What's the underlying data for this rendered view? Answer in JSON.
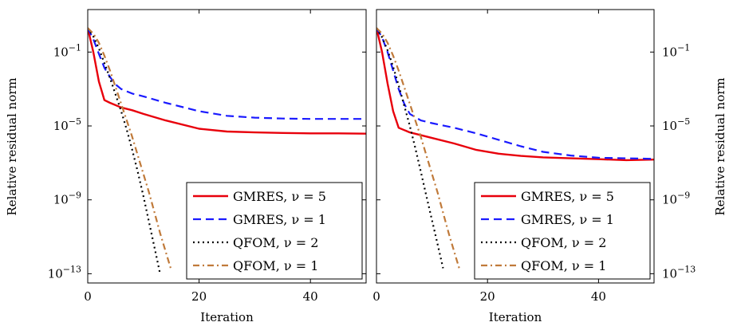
{
  "chart_data": [
    {
      "type": "line",
      "panel": "left",
      "xlabel": "Iteration",
      "ylabel": "Relative residual norm",
      "xlim": [
        0,
        50
      ],
      "ylim_log10": [
        -13.5,
        1.3
      ],
      "yscale": "log",
      "xticks": [
        "0",
        "20",
        "40"
      ],
      "yticks": [
        {
          "exp": -1,
          "label": "10-1"
        },
        {
          "exp": -5,
          "label": "10-5"
        },
        {
          "exp": -9,
          "label": "10-9"
        },
        {
          "exp": -13,
          "label": "10-13"
        }
      ],
      "ytick_side": "left",
      "legend_position": "bottom-right",
      "series": [
        {
          "name": "GMRES, ν = 5",
          "color": "#e8000b",
          "dash": "solid",
          "x": [
            0,
            1,
            2,
            3,
            4,
            6,
            8,
            10,
            14,
            20,
            25,
            30,
            35,
            40,
            45,
            50
          ],
          "log10y": [
            0.3,
            -1.0,
            -2.6,
            -3.6,
            -3.75,
            -4.0,
            -4.15,
            -4.35,
            -4.7,
            -5.15,
            -5.3,
            -5.35,
            -5.38,
            -5.4,
            -5.4,
            -5.42
          ]
        },
        {
          "name": "GMRES, ν = 1",
          "color": "#1a1aff",
          "dash": "dashed",
          "x": [
            0,
            1,
            2,
            3,
            4,
            5,
            6,
            8,
            10,
            14,
            20,
            25,
            30,
            35,
            40,
            45,
            50
          ],
          "log10y": [
            0.3,
            -0.3,
            -1.1,
            -1.85,
            -2.35,
            -2.75,
            -3.0,
            -3.25,
            -3.4,
            -3.75,
            -4.2,
            -4.45,
            -4.55,
            -4.6,
            -4.62,
            -4.62,
            -4.62
          ]
        },
        {
          "name": "QFOM, ν = 2",
          "color": "#000000",
          "dash": "dotted",
          "x": [
            0,
            1,
            2,
            3,
            4,
            5,
            6,
            7,
            8,
            9,
            10,
            11,
            12,
            13
          ],
          "log10y": [
            0.3,
            -0.15,
            -0.8,
            -1.6,
            -2.4,
            -3.3,
            -4.2,
            -5.2,
            -6.3,
            -7.5,
            -8.8,
            -10.2,
            -11.6,
            -13.0
          ]
        },
        {
          "name": "QFOM, ν = 1",
          "color": "#c07a3a",
          "dash": "dashdot",
          "x": [
            0,
            1,
            2,
            3,
            4,
            5,
            6,
            7,
            8,
            9,
            10,
            11,
            12,
            13,
            14,
            15
          ],
          "log10y": [
            0.3,
            0.0,
            -0.5,
            -1.2,
            -2.0,
            -2.9,
            -3.8,
            -4.7,
            -5.6,
            -6.6,
            -7.6,
            -8.6,
            -9.7,
            -10.8,
            -11.8,
            -12.8
          ]
        }
      ]
    },
    {
      "type": "line",
      "panel": "right",
      "xlabel": "Iteration",
      "ylabel": "Relative residual norm",
      "xlim": [
        0,
        50
      ],
      "ylim_log10": [
        -13.5,
        1.3
      ],
      "yscale": "log",
      "xticks": [
        "0",
        "20",
        "40"
      ],
      "yticks": [
        {
          "exp": -1,
          "label": "10-1"
        },
        {
          "exp": -5,
          "label": "10-5"
        },
        {
          "exp": -9,
          "label": "10-9"
        },
        {
          "exp": -13,
          "label": "10-13"
        }
      ],
      "ytick_side": "right",
      "legend_position": "bottom-right",
      "series": [
        {
          "name": "GMRES, ν = 5",
          "color": "#e8000b",
          "dash": "solid",
          "x": [
            0,
            1,
            2,
            3,
            4,
            6,
            8,
            10,
            14,
            18,
            22,
            26,
            30,
            35,
            40,
            45,
            50
          ],
          "log10y": [
            0.3,
            -1.0,
            -2.7,
            -4.2,
            -5.1,
            -5.35,
            -5.5,
            -5.65,
            -5.95,
            -6.3,
            -6.5,
            -6.62,
            -6.7,
            -6.75,
            -6.8,
            -6.85,
            -6.82
          ]
        },
        {
          "name": "GMRES, ν = 1",
          "color": "#1a1aff",
          "dash": "dashed",
          "x": [
            0,
            1,
            2,
            3,
            4,
            5,
            6,
            8,
            10,
            14,
            18,
            22,
            26,
            30,
            35,
            40,
            45,
            50
          ],
          "log10y": [
            0.3,
            -0.2,
            -1.0,
            -2.0,
            -3.0,
            -3.8,
            -4.35,
            -4.7,
            -4.85,
            -5.1,
            -5.4,
            -5.75,
            -6.1,
            -6.4,
            -6.6,
            -6.72,
            -6.75,
            -6.78
          ]
        },
        {
          "name": "QFOM, ν = 2",
          "color": "#000000",
          "dash": "dotted",
          "x": [
            0,
            1,
            2,
            3,
            4,
            5,
            6,
            7,
            8,
            9,
            10,
            11,
            12
          ],
          "log10y": [
            0.3,
            -0.2,
            -0.9,
            -1.8,
            -2.8,
            -3.9,
            -5.0,
            -6.2,
            -7.5,
            -8.8,
            -10.1,
            -11.4,
            -12.7
          ]
        },
        {
          "name": "QFOM, ν = 1",
          "color": "#c07a3a",
          "dash": "dashdot",
          "x": [
            0,
            1,
            2,
            3,
            4,
            5,
            6,
            7,
            8,
            9,
            10,
            11,
            12,
            13,
            14,
            15
          ],
          "log10y": [
            0.3,
            0.0,
            -0.5,
            -1.2,
            -2.0,
            -2.9,
            -3.8,
            -4.7,
            -5.6,
            -6.6,
            -7.6,
            -8.6,
            -9.7,
            -10.8,
            -11.8,
            -12.8
          ]
        }
      ]
    }
  ]
}
